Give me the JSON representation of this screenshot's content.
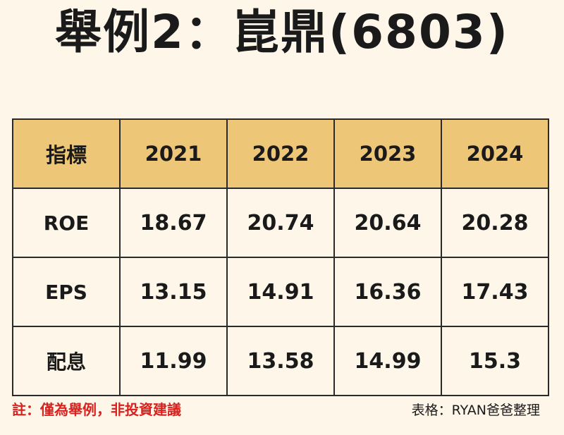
{
  "title": "舉例2：崑鼎(6803)",
  "table": {
    "header": [
      "指標",
      "2021",
      "2022",
      "2023",
      "2024"
    ],
    "rows": [
      {
        "label": "ROE",
        "values": [
          "18.67",
          "20.74",
          "20.64",
          "20.28"
        ]
      },
      {
        "label": "EPS",
        "values": [
          "13.15",
          "14.91",
          "16.36",
          "17.43"
        ]
      },
      {
        "label": "配息",
        "values": [
          "11.99",
          "13.58",
          "14.99",
          "15.3"
        ]
      }
    ]
  },
  "footer": {
    "note": "註：僅為舉例，非投資建議",
    "credit": "表格：RYAN爸爸整理"
  },
  "colors": {
    "background": "#fdf6e9",
    "header_fill": "#edc678",
    "note_text": "#d8221f",
    "border": "#2a2a2a"
  }
}
